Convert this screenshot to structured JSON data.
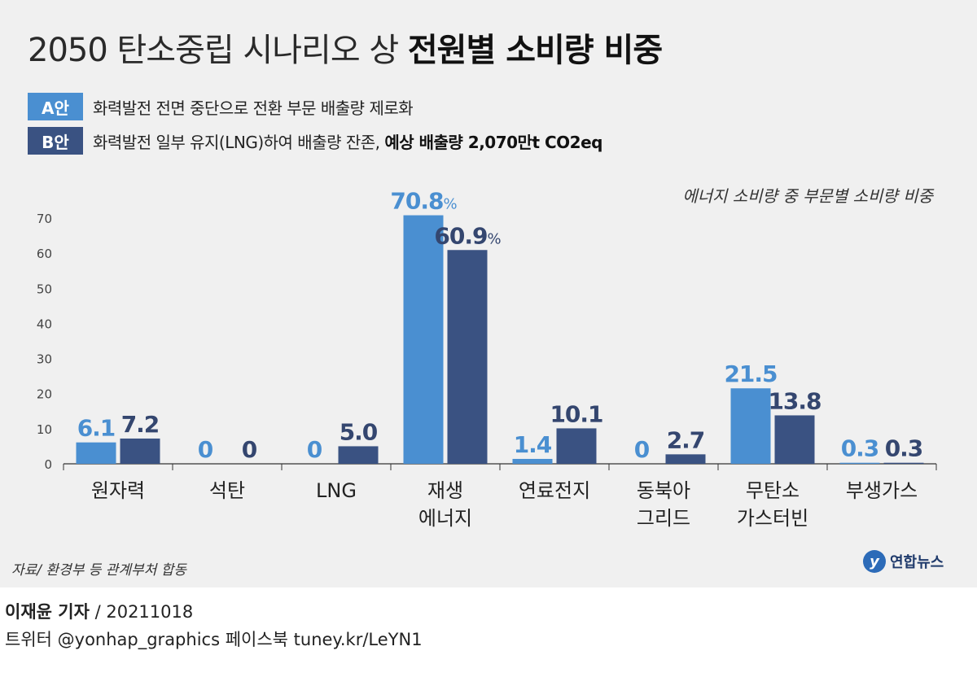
{
  "header": {
    "title_light": "2050 탄소중립 시나리오 상",
    "title_bold": "전원별 소비량 비중"
  },
  "legend": {
    "a_badge": "A안",
    "a_text": "화력발전 전면 중단으로 전환 부문 배출량 제로화",
    "b_badge": "B안",
    "b_text": "화력발전 일부 유지(LNG)하여 배출량 잔존,",
    "b_text_bold": "예상 배출량 2,070만t CO2eq"
  },
  "colors": {
    "a": "#4a8fd1",
    "b": "#3a5282",
    "a_label": "#4a8fd1",
    "b_label": "#34466f"
  },
  "chart_data": {
    "type": "bar",
    "subtitle": "에너지 소비량 중 부문별 소비량 비중",
    "categories": [
      [
        "원자력"
      ],
      [
        "석탄"
      ],
      [
        "LNG"
      ],
      [
        "재생",
        "에너지"
      ],
      [
        "연료전지"
      ],
      [
        "동북아",
        "그리드"
      ],
      [
        "무탄소",
        "가스터빈"
      ],
      [
        "부생가스"
      ]
    ],
    "series": [
      {
        "name": "A안",
        "values": [
          6.1,
          0,
          0,
          70.8,
          1.4,
          0,
          21.5,
          0.3
        ],
        "labels": [
          "6.1",
          "0",
          "0",
          "70.8",
          "1.4",
          "0",
          "21.5",
          "0.3"
        ]
      },
      {
        "name": "B안",
        "values": [
          7.2,
          0,
          5.0,
          60.9,
          10.1,
          2.7,
          13.8,
          0.3
        ],
        "labels": [
          "7.2",
          "0",
          "5.0",
          "60.9",
          "10.1",
          "2.7",
          "13.8",
          "0.3"
        ]
      }
    ],
    "percent_on_category_index": 3,
    "ylim": [
      0,
      70
    ],
    "yticks": [
      0,
      10,
      20,
      30,
      40,
      50,
      60,
      70
    ],
    "grid": false
  },
  "footer": {
    "source": "자료/ 환경부 등 관계부처 합동",
    "logo_mark": "y",
    "logo_text": "연합뉴스",
    "reporter": "이재윤 기자",
    "date": " / 20211018",
    "social": "트위터 @yonhap_graphics  페이스북 tuney.kr/LeYN1"
  }
}
